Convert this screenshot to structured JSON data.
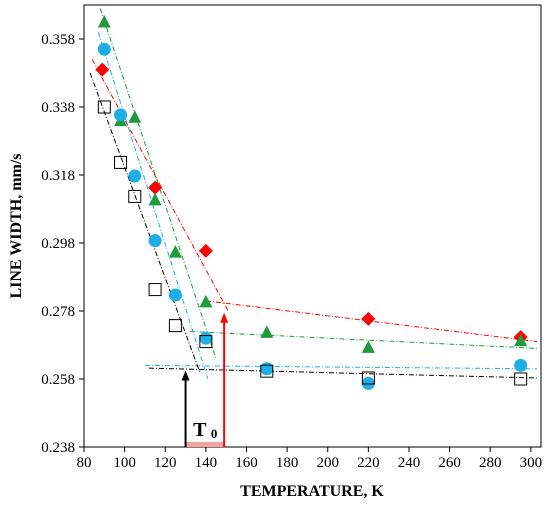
{
  "chart_data": {
    "type": "scatter",
    "xlabel": "TEMPERATURE,  K",
    "ylabel": "LINE WIDTH, mm/s",
    "xlim": [
      80,
      305
    ],
    "ylim": [
      0.238,
      0.368
    ],
    "xticks": [
      80,
      100,
      120,
      140,
      160,
      180,
      200,
      220,
      240,
      260,
      280,
      300
    ],
    "yticks": [
      0.238,
      0.258,
      0.278,
      0.298,
      0.318,
      0.338,
      0.358
    ],
    "xtick_labels": [
      "80",
      "100",
      "120",
      "140",
      "160",
      "180",
      "200",
      "220",
      "240",
      "260",
      "280",
      "300"
    ],
    "ytick_labels": [
      "0.238",
      "0.258",
      "0.278",
      "0.298",
      "0.318",
      "0.338",
      "0.358"
    ],
    "grid": false,
    "legend": "none",
    "series": [
      {
        "marker": "diamond",
        "color": "#ff0000",
        "x": [
          89,
          115,
          140,
          220,
          295
        ],
        "y": [
          0.349,
          0.3143,
          0.2957,
          0.2757,
          0.2703
        ],
        "fits": [
          {
            "x": [
              84,
              151
            ],
            "y": [
              0.352,
              0.278
            ]
          },
          {
            "x": [
              140,
              303
            ],
            "y": [
              0.281,
              0.269
            ]
          }
        ]
      },
      {
        "marker": "triangle",
        "color": "#1e9b3c",
        "x": [
          90,
          98,
          105,
          115,
          125,
          140,
          170,
          220,
          295
        ],
        "y": [
          0.363,
          0.334,
          0.335,
          0.3107,
          0.2953,
          0.2807,
          0.2717,
          0.2673,
          0.2693
        ],
        "fits": [
          {
            "x": [
              88,
              145
            ],
            "y": [
              0.367,
              0.264
            ]
          },
          {
            "x": [
              132,
              303
            ],
            "y": [
              0.272,
              0.267
            ]
          }
        ]
      },
      {
        "marker": "circle",
        "color": "#1eaee6",
        "x": [
          90,
          98,
          105,
          115,
          125,
          140,
          170,
          220,
          295
        ],
        "y": [
          0.355,
          0.3357,
          0.3177,
          0.2987,
          0.2827,
          0.27,
          0.261,
          0.2567,
          0.262
        ],
        "fits": [
          {
            "x": [
              87,
              141
            ],
            "y": [
              0.36,
              0.258
            ]
          },
          {
            "x": [
              110,
              303
            ],
            "y": [
              0.262,
              0.261
            ]
          }
        ]
      },
      {
        "marker": "open-square",
        "color": "#000000",
        "x": [
          90,
          98,
          105,
          115,
          125,
          140,
          170,
          220,
          295
        ],
        "y": [
          0.338,
          0.3217,
          0.3117,
          0.2843,
          0.2737,
          0.269,
          0.2603,
          0.2583,
          0.258
        ],
        "fits": [
          {
            "x": [
              83,
              137
            ],
            "y": [
              0.348,
              0.26
            ]
          },
          {
            "x": [
              112,
              303
            ],
            "y": [
              0.2612,
              0.2583
            ]
          }
        ]
      }
    ],
    "annotations": [
      {
        "text": "T",
        "subscript": "0"
      }
    ],
    "arrows": [
      {
        "color": "#000000",
        "x": 130,
        "y_from": 0.238,
        "y_to": 0.2605
      },
      {
        "color": "#ff0000",
        "x": 149,
        "y_from": 0.238,
        "y_to": 0.2775
      }
    ],
    "band": {
      "color": "#f4a3a3",
      "x_from": 130,
      "x_to": 149,
      "y_from": 0.238,
      "y_to": 0.2395
    }
  }
}
